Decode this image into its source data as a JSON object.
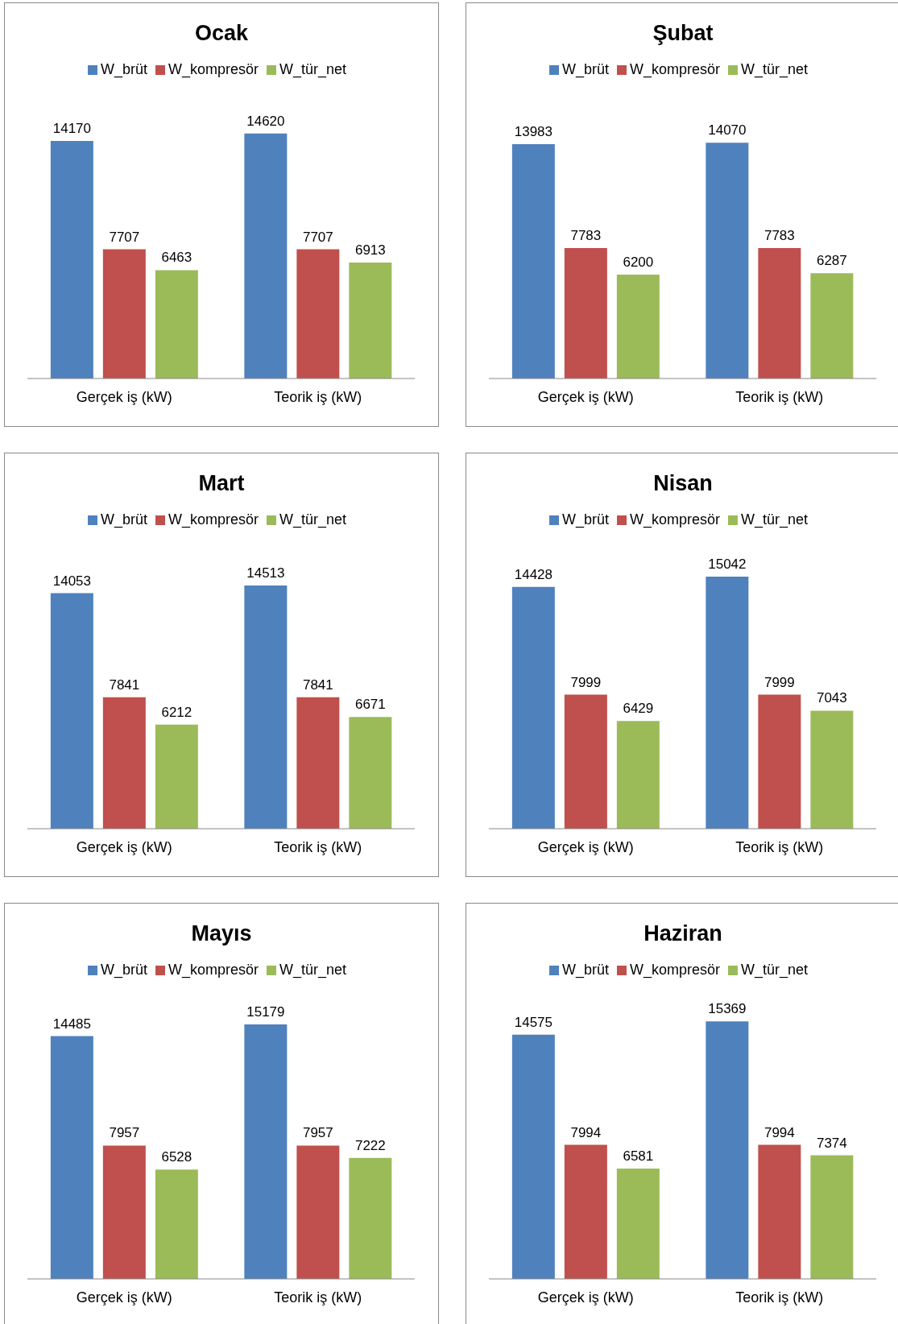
{
  "chart_data": [
    {
      "type": "bar",
      "title": "Ocak",
      "categories": [
        "Gerçek iş (kW)",
        "Teorik iş (kW)"
      ],
      "legend": "top",
      "data_labels": true,
      "series": [
        {
          "name": "W_brüt",
          "color": "#4f81bd",
          "values": [
            14170,
            14620
          ]
        },
        {
          "name": "W_kompresör",
          "color": "#c0504d",
          "values": [
            7707,
            7707
          ]
        },
        {
          "name": "W_tür_net",
          "color": "#9bbb59",
          "values": [
            6463,
            6913
          ]
        }
      ]
    },
    {
      "type": "bar",
      "title": "Şubat",
      "categories": [
        "Gerçek iş (kW)",
        "Teorik iş (kW)"
      ],
      "legend": "top",
      "data_labels": true,
      "series": [
        {
          "name": "W_brüt",
          "color": "#4f81bd",
          "values": [
            13983,
            14070
          ]
        },
        {
          "name": "W_kompresör",
          "color": "#c0504d",
          "values": [
            7783,
            7783
          ]
        },
        {
          "name": "W_tür_net",
          "color": "#9bbb59",
          "values": [
            6200,
            6287
          ]
        }
      ]
    },
    {
      "type": "bar",
      "title": "Mart",
      "categories": [
        "Gerçek iş (kW)",
        "Teorik iş (kW)"
      ],
      "legend": "top",
      "data_labels": true,
      "series": [
        {
          "name": "W_brüt",
          "color": "#4f81bd",
          "values": [
            14053,
            14513
          ]
        },
        {
          "name": "W_kompresör",
          "color": "#c0504d",
          "values": [
            7841,
            7841
          ]
        },
        {
          "name": "W_tür_net",
          "color": "#9bbb59",
          "values": [
            6212,
            6671
          ]
        }
      ]
    },
    {
      "type": "bar",
      "title": "Nisan",
      "categories": [
        "Gerçek iş (kW)",
        "Teorik iş (kW)"
      ],
      "legend": "top",
      "data_labels": true,
      "series": [
        {
          "name": "W_brüt",
          "color": "#4f81bd",
          "values": [
            14428,
            15042
          ]
        },
        {
          "name": "W_kompresör",
          "color": "#c0504d",
          "values": [
            7999,
            7999
          ]
        },
        {
          "name": "W_tür_net",
          "color": "#9bbb59",
          "values": [
            6429,
            7043
          ]
        }
      ]
    },
    {
      "type": "bar",
      "title": "Mayıs",
      "categories": [
        "Gerçek iş (kW)",
        "Teorik iş (kW)"
      ],
      "legend": "top",
      "data_labels": true,
      "series": [
        {
          "name": "W_brüt",
          "color": "#4f81bd",
          "values": [
            14485,
            15179
          ]
        },
        {
          "name": "W_kompresör",
          "color": "#c0504d",
          "values": [
            7957,
            7957
          ]
        },
        {
          "name": "W_tür_net",
          "color": "#9bbb59",
          "values": [
            6528,
            7222
          ]
        }
      ]
    },
    {
      "type": "bar",
      "title": "Haziran",
      "categories": [
        "Gerçek iş (kW)",
        "Teorik iş (kW)"
      ],
      "legend": "top",
      "data_labels": true,
      "series": [
        {
          "name": "W_brüt",
          "color": "#4f81bd",
          "values": [
            14575,
            15369
          ]
        },
        {
          "name": "W_kompresör",
          "color": "#c0504d",
          "values": [
            7994,
            7994
          ]
        },
        {
          "name": "W_tür_net",
          "color": "#9bbb59",
          "values": [
            6581,
            7374
          ]
        }
      ]
    }
  ]
}
